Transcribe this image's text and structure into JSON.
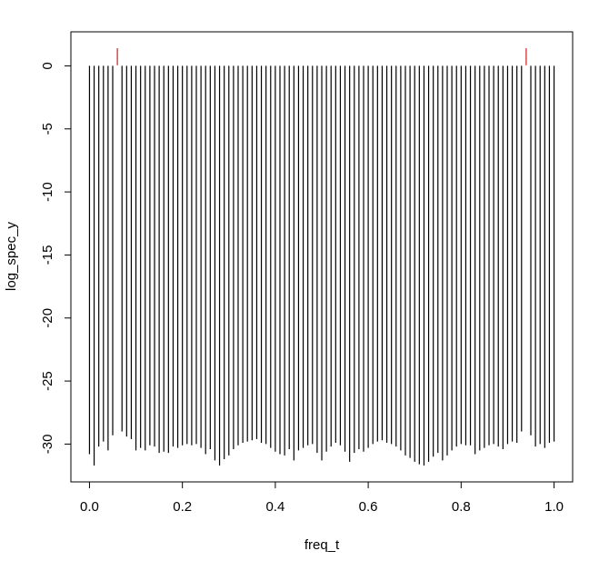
{
  "chart_data": {
    "type": "bar",
    "xlabel": "freq_t",
    "ylabel": "log_spec_y",
    "xlim": [
      -0.04,
      1.04
    ],
    "ylim": [
      -33,
      2.7
    ],
    "x_ticks": [
      0.0,
      0.2,
      0.4,
      0.6,
      0.8,
      1.0
    ],
    "x_tick_labels": [
      "0.0",
      "0.2",
      "0.4",
      "0.6",
      "0.8",
      "1.0"
    ],
    "y_ticks": [
      0,
      -5,
      -10,
      -15,
      -20,
      -25,
      -30
    ],
    "y_tick_labels": [
      "0",
      "-5",
      "-10",
      "-15",
      "-20",
      "-25",
      "-30"
    ],
    "grid": false,
    "baseline": 0,
    "series": [
      {
        "color": "#000000",
        "x_start": 0.0,
        "x_step": 0.01,
        "count": 101,
        "skip_indices": [
          6,
          94
        ],
        "values": [
          -30.8,
          -31.7,
          -30.2,
          -29.8,
          -30.5,
          -29.3,
          -29.1,
          -29.0,
          -29.4,
          -29.6,
          -30.5,
          -30.3,
          -30.5,
          -30.1,
          -30.2,
          -30.7,
          -30.6,
          -30.7,
          -30.2,
          -30.3,
          -30.1,
          -30.0,
          -30.1,
          -30.0,
          -30.3,
          -30.8,
          -30.4,
          -31.3,
          -31.7,
          -31.2,
          -30.9,
          -30.4,
          -30.1,
          -29.9,
          -29.8,
          -29.7,
          -29.6,
          -29.9,
          -30.0,
          -30.3,
          -30.6,
          -30.8,
          -30.9,
          -30.4,
          -31.3,
          -30.5,
          -30.3,
          -30.1,
          -30.0,
          -30.7,
          -31.3,
          -30.6,
          -30.2,
          -29.9,
          -30.1,
          -30.6,
          -31.4,
          -30.7,
          -30.4,
          -30.6,
          -30.3,
          -30.0,
          -29.8,
          -29.7,
          -29.9,
          -30.0,
          -30.2,
          -30.5,
          -30.9,
          -31.1,
          -31.4,
          -31.6,
          -31.7,
          -31.4,
          -31.0,
          -30.7,
          -31.3,
          -30.9,
          -30.5,
          -30.2,
          -30.0,
          -30.1,
          -30.1,
          -30.8,
          -30.5,
          -30.3,
          -30.1,
          -30.0,
          -30.2,
          -30.4,
          -30.0,
          -29.8,
          -29.9,
          -29.0,
          -29.1,
          -29.3,
          -30.2,
          -30.0,
          -30.3,
          -29.9,
          -29.8
        ]
      },
      {
        "color": "#cc2222",
        "x": [
          0.06,
          0.94
        ],
        "y0": [
          0.05,
          0.05
        ],
        "y1": [
          1.4,
          1.4
        ]
      }
    ]
  }
}
